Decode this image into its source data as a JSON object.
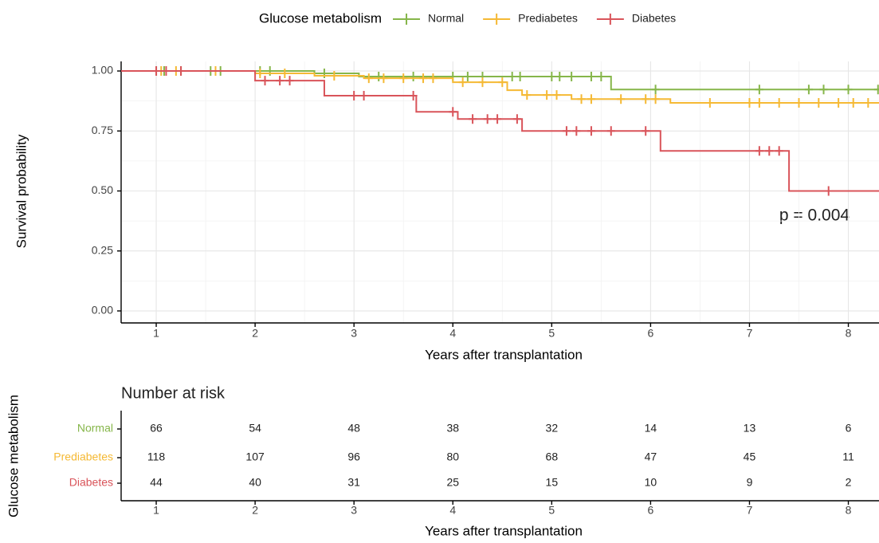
{
  "chart_data": [
    {
      "type": "step",
      "legend_title": "Glucose metabolism",
      "legend": "top",
      "xlabel": "Years after transplantation",
      "ylabel": "Survival probability",
      "annotation": "p = 0.004",
      "xlim": [
        0.645,
        8.31
      ],
      "xticks": [
        1,
        2,
        3,
        4,
        5,
        6,
        7,
        8
      ],
      "ylim": [
        -0.05,
        1.04
      ],
      "yticks": [
        {
          "value": 0,
          "label": "0.00"
        },
        {
          "value": 0.25,
          "label": "0.25"
        },
        {
          "value": 0.5,
          "label": "0.50"
        },
        {
          "value": 0.75,
          "label": "0.75"
        },
        {
          "value": 1,
          "label": "1.00"
        }
      ],
      "grid": true,
      "minor_grid": true,
      "series": [
        {
          "name": "Normal",
          "color": "#86b64a",
          "x": [
            0,
            2.6,
            3.05,
            5.6,
            8.31
          ],
          "values": [
            1,
            0.99,
            0.977,
            0.923,
            0.923
          ],
          "censor_x": [
            1.0,
            1.08,
            1.25,
            1.55,
            1.65,
            2.05,
            2.15,
            2.7,
            3.25,
            3.6,
            4.0,
            4.15,
            4.3,
            4.6,
            4.68,
            5.0,
            5.08,
            5.2,
            5.4,
            5.5,
            6.05,
            7.1,
            7.6,
            7.75,
            8.0,
            8.3
          ],
          "censor_values": [
            1,
            1,
            1,
            1,
            1,
            1,
            1,
            0.99,
            0.977,
            0.977,
            0.977,
            0.977,
            0.977,
            0.977,
            0.977,
            0.977,
            0.977,
            0.977,
            0.977,
            0.977,
            0.923,
            0.923,
            0.923,
            0.923,
            0.923,
            0.923
          ]
        },
        {
          "name": "Prediabetes",
          "color": "#f5b934",
          "x": [
            0,
            2.0,
            2.6,
            3.1,
            4.0,
            4.55,
            4.7,
            5.2,
            6.2,
            8.31
          ],
          "values": [
            1,
            0.99,
            0.98,
            0.97,
            0.953,
            0.92,
            0.9,
            0.883,
            0.867,
            0.867
          ],
          "censor_x": [
            1.05,
            1.2,
            1.6,
            2.05,
            2.3,
            2.8,
            3.15,
            3.3,
            3.5,
            3.7,
            3.8,
            4.1,
            4.3,
            4.5,
            4.75,
            4.95,
            5.05,
            5.3,
            5.4,
            5.7,
            5.95,
            6.05,
            6.6,
            7.0,
            7.1,
            7.3,
            7.5,
            7.7,
            7.9,
            8.05,
            8.2
          ],
          "censor_values": [
            1,
            1,
            1,
            0.99,
            0.99,
            0.98,
            0.97,
            0.97,
            0.97,
            0.97,
            0.97,
            0.953,
            0.953,
            0.953,
            0.9,
            0.9,
            0.9,
            0.883,
            0.883,
            0.883,
            0.883,
            0.883,
            0.867,
            0.867,
            0.867,
            0.867,
            0.867,
            0.867,
            0.867,
            0.867,
            0.867
          ]
        },
        {
          "name": "Diabetes",
          "color": "#d9545a",
          "x": [
            0,
            2.0,
            2.7,
            3.63,
            4.05,
            4.7,
            6.1,
            7.4,
            8.31
          ],
          "values": [
            1,
            0.96,
            0.897,
            0.83,
            0.8,
            0.75,
            0.667,
            0.5,
            0.5
          ],
          "censor_x": [
            1.0,
            1.1,
            1.25,
            2.1,
            2.25,
            2.35,
            3.0,
            3.1,
            3.6,
            4.0,
            4.2,
            4.35,
            4.45,
            4.65,
            5.15,
            5.25,
            5.4,
            5.6,
            5.95,
            7.1,
            7.2,
            7.3,
            7.8
          ],
          "censor_values": [
            1,
            1,
            1,
            0.96,
            0.96,
            0.96,
            0.897,
            0.897,
            0.897,
            0.83,
            0.8,
            0.8,
            0.8,
            0.8,
            0.75,
            0.75,
            0.75,
            0.75,
            0.75,
            0.667,
            0.667,
            0.667,
            0.5
          ]
        }
      ]
    },
    {
      "type": "risk-table",
      "title": "Number at risk",
      "xlabel": "Years after transplantation",
      "ylabel": "Glucose metabolism",
      "xlim": [
        0.645,
        8.31
      ],
      "xticks": [
        1,
        2,
        3,
        4,
        5,
        6,
        7,
        8
      ],
      "x": [
        1,
        2,
        3,
        4,
        5,
        6,
        7,
        8
      ],
      "rows": [
        {
          "name": "Normal",
          "color": "#86b64a",
          "values": [
            66,
            54,
            48,
            38,
            32,
            14,
            13,
            6
          ]
        },
        {
          "name": "Prediabetes",
          "color": "#f5b934",
          "values": [
            118,
            107,
            96,
            80,
            68,
            47,
            45,
            11
          ]
        },
        {
          "name": "Diabetes",
          "color": "#d9545a",
          "values": [
            44,
            40,
            31,
            25,
            15,
            10,
            9,
            2
          ]
        }
      ]
    }
  ]
}
